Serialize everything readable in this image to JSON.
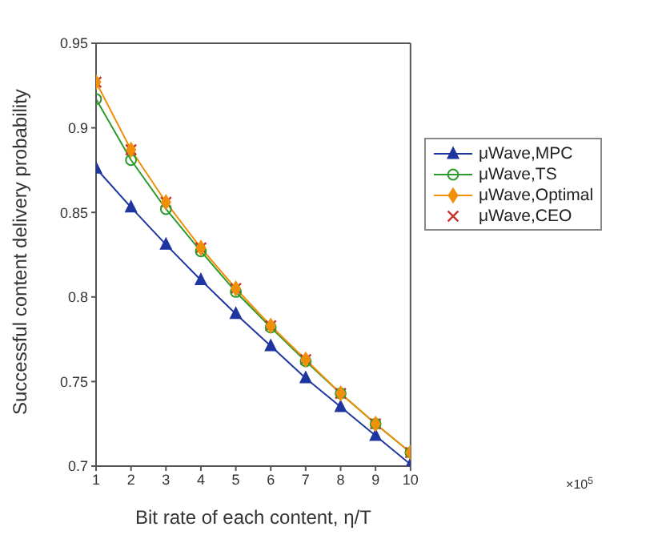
{
  "chart_data": {
    "type": "line",
    "xlabel": "Bit rate of each content, η/T",
    "ylabel": "Successful content delivery probability",
    "x": [
      1,
      2,
      3,
      4,
      5,
      6,
      7,
      8,
      9,
      10
    ],
    "xlim": [
      1,
      10
    ],
    "xticks": [
      1,
      2,
      3,
      4,
      5,
      6,
      7,
      8,
      9,
      10
    ],
    "ylim": [
      0.7,
      0.95
    ],
    "yticks": [
      0.7,
      0.75,
      0.8,
      0.85,
      0.9,
      0.95
    ],
    "grid": false,
    "legend": "right",
    "line_style": "solid",
    "annotations": [
      "×10$^{5}$"
    ],
    "series": [
      {
        "name": "μWave,MPC",
        "color": "#1f35a0",
        "marker": "triangle",
        "values": [
          0.876,
          0.853,
          0.831,
          0.81,
          0.79,
          0.771,
          0.752,
          0.735,
          0.718,
          0.701
        ]
      },
      {
        "name": "μWave,TS",
        "color": "#2e9a2e",
        "marker": "circle",
        "values": [
          0.917,
          0.881,
          0.852,
          0.827,
          0.803,
          0.782,
          0.762,
          0.743,
          0.725,
          0.708
        ]
      },
      {
        "name": "μWave,Optimal",
        "color": "#f0900a",
        "marker": "diamond",
        "values": [
          0.927,
          0.887,
          0.856,
          0.829,
          0.805,
          0.783,
          0.763,
          0.743,
          0.725,
          0.708
        ]
      },
      {
        "name": "μWave,CEO",
        "type": "scatter",
        "color": "#c8302a",
        "marker": "cross",
        "values": [
          0.927,
          0.887,
          0.856,
          0.829,
          0.805,
          0.783,
          0.763,
          0.743,
          0.725,
          0.708
        ]
      }
    ]
  }
}
